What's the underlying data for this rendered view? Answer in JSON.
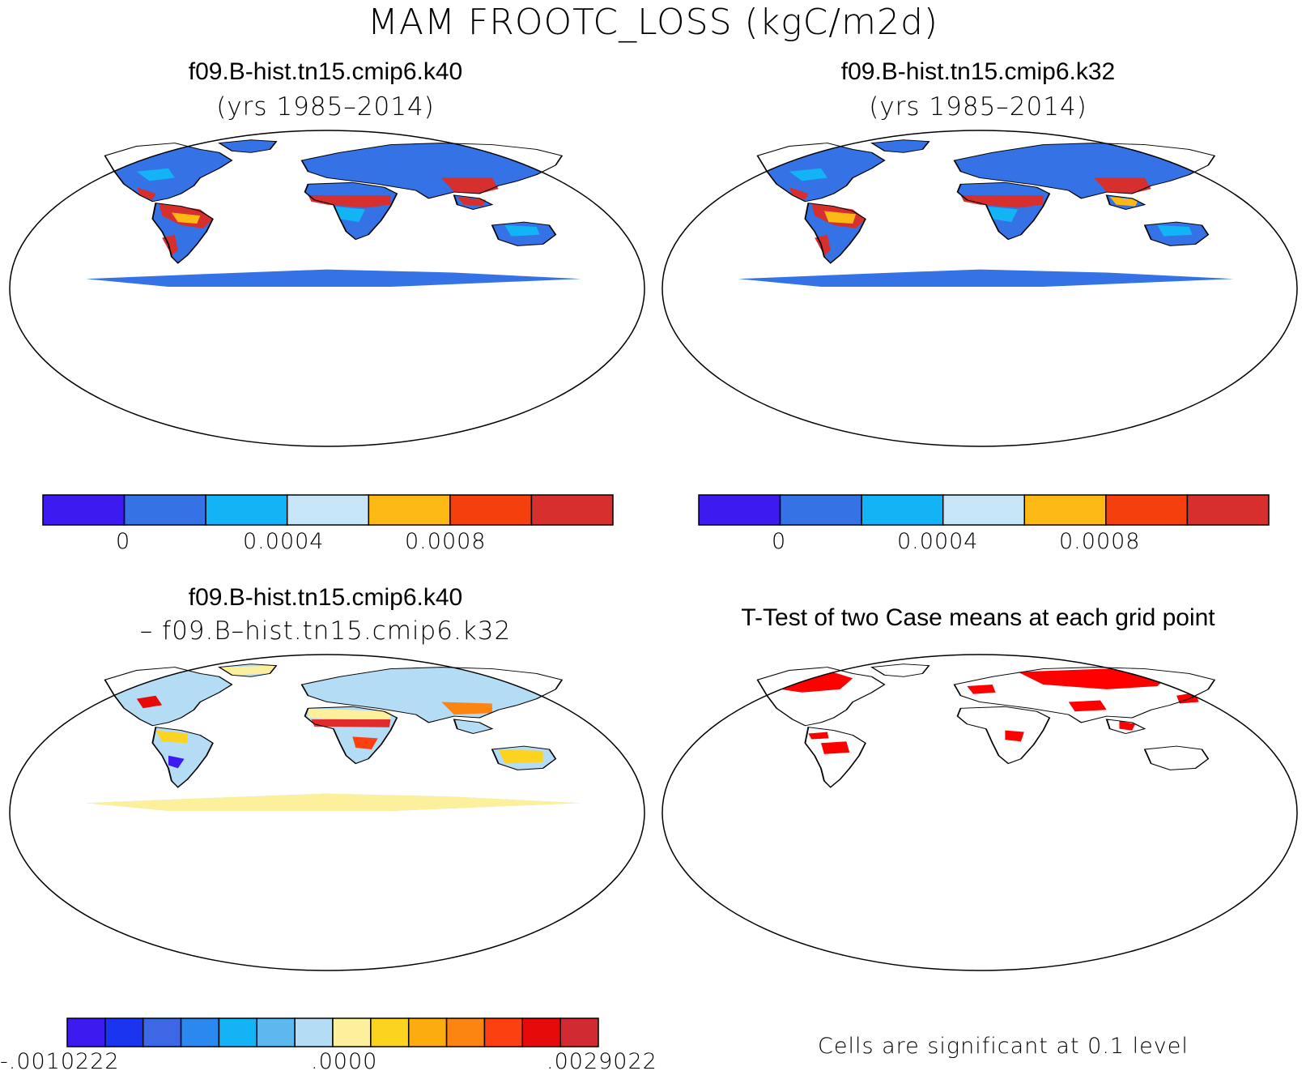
{
  "main_title": "MAM FROOTC_LOSS (kgC/m2d)",
  "panels": [
    {
      "title": "f09.B-hist.tn15.cmip6.k40",
      "subtitle": "(yrs 1985–2014)"
    },
    {
      "title": "f09.B-hist.tn15.cmip6.k32",
      "subtitle": "(yrs 1985–2014)"
    },
    {
      "title": "f09.B-hist.tn15.cmip6.k40",
      "subtitle": "– f09.B–hist.tn15.cmip6.k32"
    },
    {
      "title": "T-Test of two Case means at each grid point",
      "subtitle": ""
    }
  ],
  "ttest_note": "Cells are significant at 0.1 level",
  "colorbar_abs": {
    "colors": [
      "#3c1af0",
      "#3472e6",
      "#12b4f6",
      "#c6e6f8",
      "#fcb814",
      "#f5400e",
      "#d72e2e"
    ],
    "tick_labels": [
      "0",
      "0.0004",
      "0.0008"
    ],
    "tick_values": [
      0,
      0.0004,
      0.0008
    ]
  },
  "colorbar_diff": {
    "colors": [
      "#3c1af0",
      "#1a34f0",
      "#3c68e6",
      "#2a88ee",
      "#12b4f6",
      "#5cb8ee",
      "#b4dcf4",
      "#fcf09c",
      "#fcd420",
      "#fcac0c",
      "#fc8410",
      "#fc4010",
      "#e60a0a",
      "#d22a32"
    ],
    "tick_labels": [
      "-.0010222",
      ".0000",
      ".0029022"
    ],
    "tick_values": [
      -0.0010222,
      0.0,
      0.0029022
    ]
  },
  "map_colors": {
    "land_low": "#3472e6",
    "land_mid": "#12b4f6",
    "land_light": "#c6e6f8",
    "land_orange": "#fcb814",
    "land_red": "#d72e2e",
    "diff_base": "#b4dcf4",
    "diff_yellow": "#fcf09c",
    "diff_red": "#e60a0a",
    "sig_red": "#ff0000"
  }
}
